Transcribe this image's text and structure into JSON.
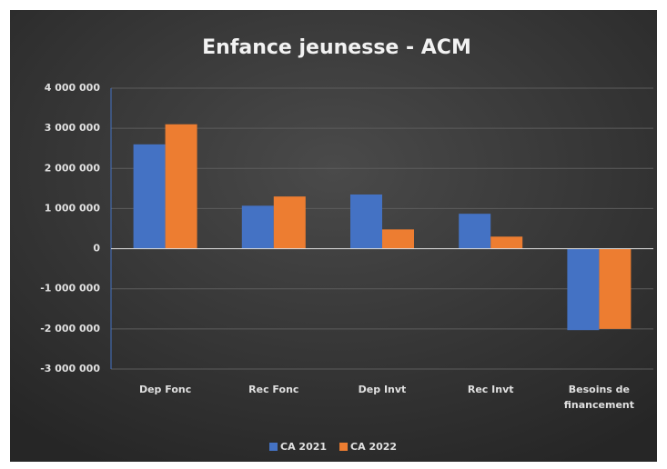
{
  "chart_data": {
    "type": "bar",
    "title": "Enfance jeunesse - ACM",
    "categories": [
      "Dep Fonc",
      "Rec Fonc",
      "Dep Invt",
      "Rec Invt",
      "Besoins de financement"
    ],
    "series": [
      {
        "name": "CA 2021",
        "color": "#4472c4",
        "values": [
          2600000,
          1070000,
          1350000,
          870000,
          -2030000
        ]
      },
      {
        "name": "CA 2022",
        "color": "#ed7d31",
        "values": [
          3100000,
          1300000,
          480000,
          300000,
          -2000000
        ]
      }
    ],
    "ylim": [
      -3000000,
      4000000
    ],
    "yticks": [
      {
        "value": -3000000,
        "label": "-3 000 000"
      },
      {
        "value": -2000000,
        "label": "-2 000 000"
      },
      {
        "value": -1000000,
        "label": "-1 000 000"
      },
      0,
      {
        "value": 1000000,
        "label": "1 000 000"
      },
      {
        "value": 2000000,
        "label": "2 000 000"
      },
      {
        "value": 3000000,
        "label": "3 000 000"
      },
      {
        "value": 4000000,
        "label": "4 000 000"
      }
    ],
    "grid": true,
    "legend": "bottom"
  }
}
